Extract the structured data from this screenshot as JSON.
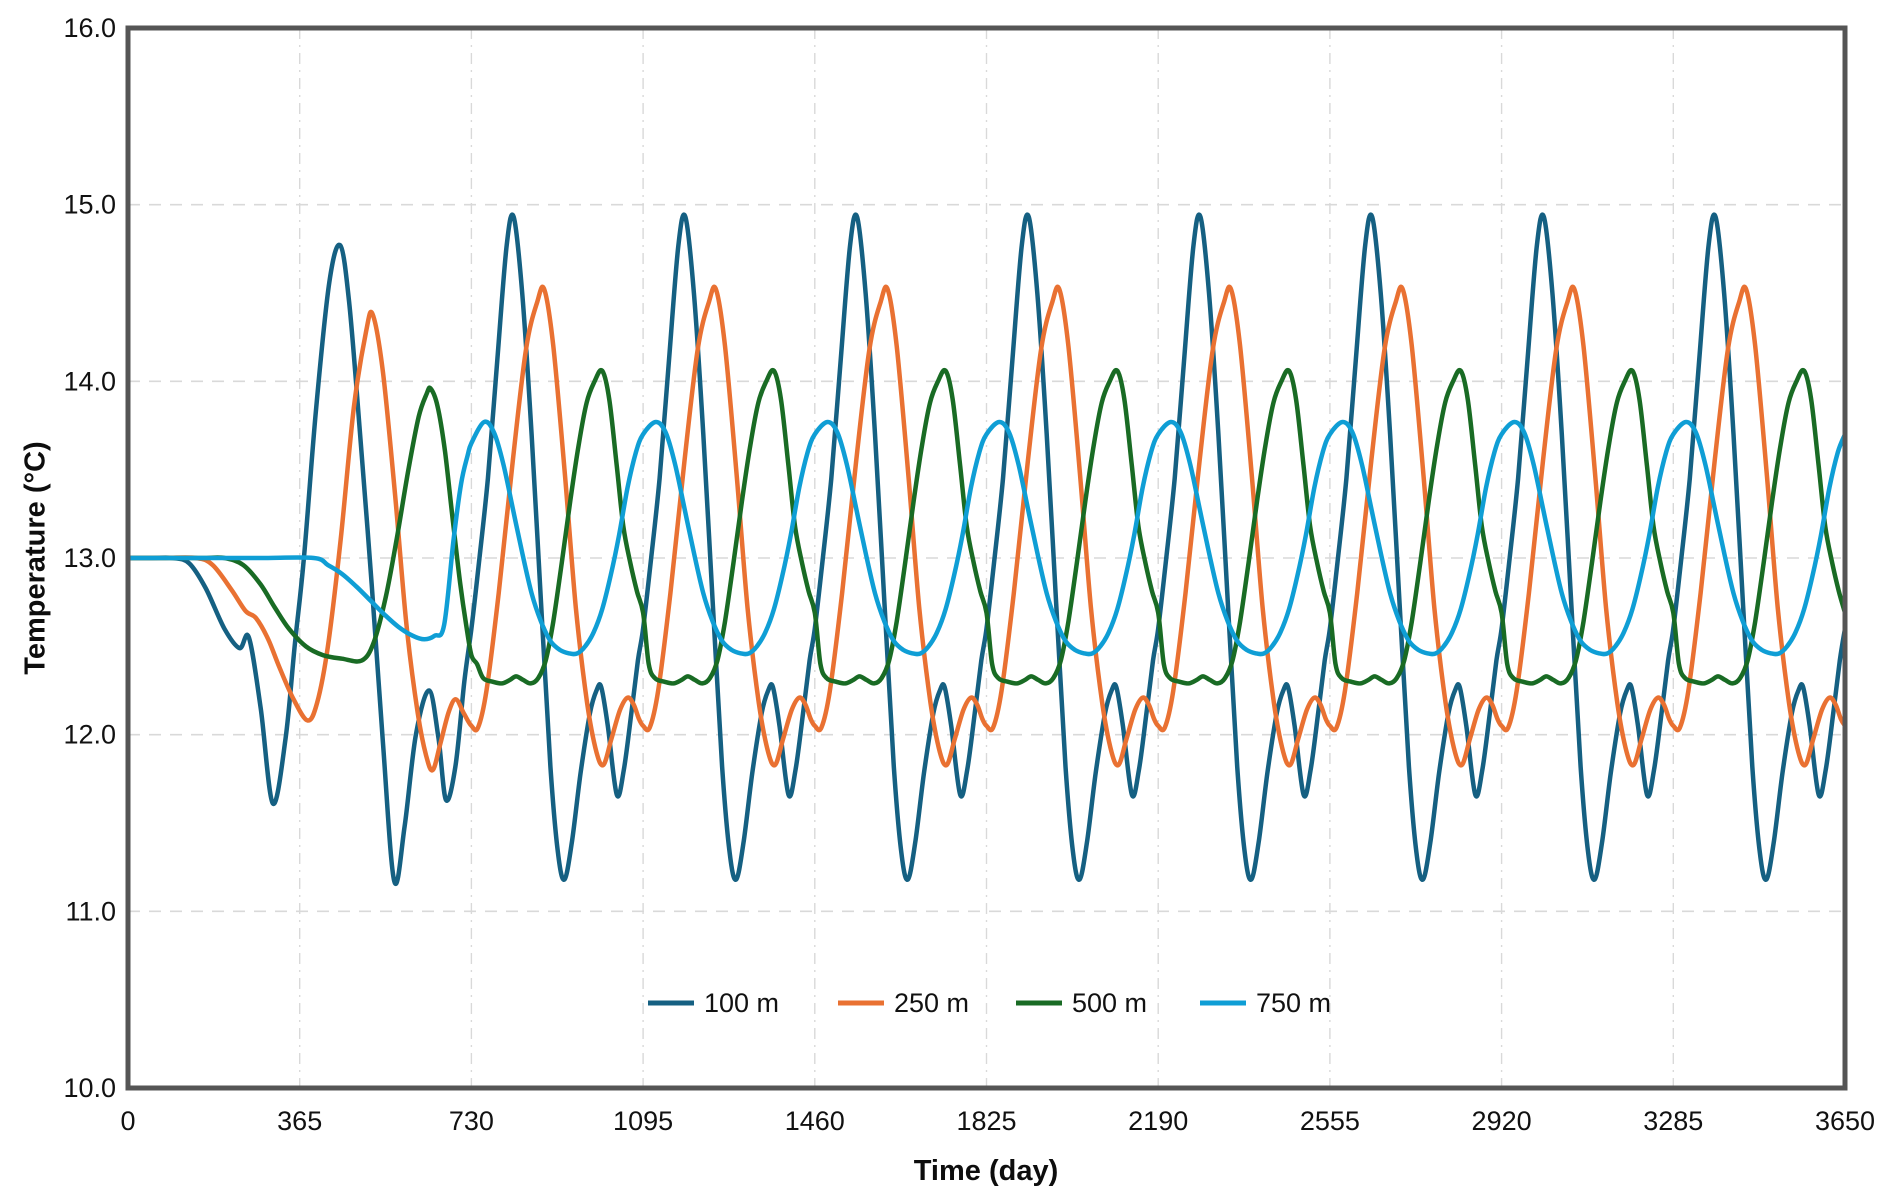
{
  "axes": {
    "x_title": "Time (day)",
    "y_title": "Temperature (°C)",
    "x_ticks": [
      {
        "v": 0,
        "label": "0"
      },
      {
        "v": 365,
        "label": "365"
      },
      {
        "v": 730,
        "label": "730"
      },
      {
        "v": 1095,
        "label": "1095"
      },
      {
        "v": 1460,
        "label": "1460"
      },
      {
        "v": 1825,
        "label": "1825"
      },
      {
        "v": 2190,
        "label": "2190"
      },
      {
        "v": 2555,
        "label": "2555"
      },
      {
        "v": 2920,
        "label": "2920"
      },
      {
        "v": 3285,
        "label": "3285"
      },
      {
        "v": 3650,
        "label": "3650"
      }
    ],
    "y_ticks": [
      {
        "v": 10,
        "label": "10.0"
      },
      {
        "v": 11,
        "label": "11.0"
      },
      {
        "v": 12,
        "label": "12.0"
      },
      {
        "v": 13,
        "label": "13.0"
      },
      {
        "v": 14,
        "label": "14.0"
      },
      {
        "v": 15,
        "label": "15.0"
      },
      {
        "v": 16,
        "label": "16.0"
      }
    ]
  },
  "style": {
    "frame_color": "#555555",
    "grid_color": "#d9d9d9",
    "background": "#ffffff"
  },
  "chart_data": {
    "type": "line",
    "title": "",
    "xlabel": "Time (day)",
    "ylabel": "Temperature (°C)",
    "xlim": [
      0,
      3650
    ],
    "ylim": [
      10.0,
      16.0
    ],
    "x_tick_step": 365,
    "y_tick_step": 1.0,
    "grid": true,
    "legend_position": "inside-bottom-center",
    "description": "Temperature at four sensor distances vs time over 10 years. All series start at 13.0 C, show an initial transient dip, then settle into annual (365-day) oscillations whose amplitude and phase lag depend on distance. Series data below: 'initial' = explicit [day, tempC] points for the first two years; 'cycle' = one steady annual cycle as [day-of-year, tempC] points repeated every 365 days starting at 'cycle_start' until day 3650.",
    "series": [
      {
        "name": "100 m",
        "color": "#156082",
        "steady_peak": 14.93,
        "steady_trough": 11.18,
        "cycle_start": 730,
        "initial": [
          [
            0,
            13.0
          ],
          [
            50,
            13.0
          ],
          [
            95,
            13.0
          ],
          [
            130,
            12.97
          ],
          [
            165,
            12.83
          ],
          [
            205,
            12.6
          ],
          [
            237,
            12.49
          ],
          [
            257,
            12.55
          ],
          [
            282,
            12.15
          ],
          [
            308,
            11.61
          ],
          [
            335,
            11.98
          ],
          [
            355,
            12.52
          ],
          [
            374,
            13.0
          ],
          [
            400,
            13.85
          ],
          [
            428,
            14.56
          ],
          [
            451,
            14.77
          ],
          [
            470,
            14.45
          ],
          [
            492,
            13.75
          ],
          [
            518,
            12.85
          ],
          [
            542,
            11.95
          ],
          [
            566,
            11.17
          ],
          [
            588,
            11.48
          ],
          [
            612,
            12.0
          ],
          [
            640,
            12.25
          ],
          [
            660,
            11.98
          ],
          [
            676,
            11.63
          ],
          [
            696,
            11.82
          ],
          [
            715,
            12.3
          ],
          [
            730,
            12.6
          ]
        ],
        "cycle": [
          [
            15,
            12.95
          ],
          [
            35,
            13.45
          ],
          [
            55,
            14.12
          ],
          [
            75,
            14.77
          ],
          [
            90,
            14.93
          ],
          [
            108,
            14.5
          ],
          [
            128,
            13.7
          ],
          [
            148,
            12.75
          ],
          [
            168,
            11.82
          ],
          [
            184,
            11.33
          ],
          [
            198,
            11.18
          ],
          [
            214,
            11.4
          ],
          [
            232,
            11.78
          ],
          [
            252,
            12.12
          ],
          [
            266,
            12.25
          ],
          [
            276,
            12.27
          ],
          [
            290,
            12.05
          ],
          [
            309,
            11.66
          ],
          [
            324,
            11.8
          ],
          [
            340,
            12.12
          ],
          [
            354,
            12.42
          ],
          [
            365,
            12.6
          ]
        ]
      },
      {
        "name": "250 m",
        "color": "#E97132",
        "steady_peak": 14.52,
        "steady_trough": 11.83,
        "cycle_start": 730,
        "initial": [
          [
            0,
            13.0
          ],
          [
            70,
            13.0
          ],
          [
            145,
            13.0
          ],
          [
            180,
            12.96
          ],
          [
            220,
            12.82
          ],
          [
            250,
            12.7
          ],
          [
            272,
            12.66
          ],
          [
            298,
            12.54
          ],
          [
            322,
            12.38
          ],
          [
            352,
            12.2
          ],
          [
            382,
            12.08
          ],
          [
            402,
            12.18
          ],
          [
            425,
            12.5
          ],
          [
            452,
            13.1
          ],
          [
            480,
            13.85
          ],
          [
            506,
            14.28
          ],
          [
            520,
            14.38
          ],
          [
            542,
            14.05
          ],
          [
            568,
            13.35
          ],
          [
            592,
            12.62
          ],
          [
            616,
            12.12
          ],
          [
            634,
            11.88
          ],
          [
            648,
            11.8
          ],
          [
            664,
            11.95
          ],
          [
            682,
            12.13
          ],
          [
            697,
            12.2
          ],
          [
            714,
            12.12
          ],
          [
            730,
            12.05
          ]
        ],
        "cycle": [
          [
            14,
            12.04
          ],
          [
            32,
            12.25
          ],
          [
            58,
            12.8
          ],
          [
            88,
            13.55
          ],
          [
            116,
            14.18
          ],
          [
            140,
            14.45
          ],
          [
            155,
            14.52
          ],
          [
            174,
            14.2
          ],
          [
            198,
            13.5
          ],
          [
            222,
            12.72
          ],
          [
            246,
            12.18
          ],
          [
            266,
            11.9
          ],
          [
            281,
            11.83
          ],
          [
            298,
            11.98
          ],
          [
            316,
            12.14
          ],
          [
            332,
            12.21
          ],
          [
            345,
            12.17
          ],
          [
            356,
            12.09
          ],
          [
            365,
            12.05
          ]
        ]
      },
      {
        "name": "500 m",
        "color": "#196B24",
        "steady_peak": 14.06,
        "steady_trough": 12.29,
        "cycle_start": 730,
        "initial": [
          [
            0,
            13.0
          ],
          [
            100,
            13.0
          ],
          [
            160,
            13.0
          ],
          [
            205,
            13.0
          ],
          [
            245,
            12.96
          ],
          [
            282,
            12.85
          ],
          [
            312,
            12.72
          ],
          [
            342,
            12.6
          ],
          [
            378,
            12.5
          ],
          [
            415,
            12.45
          ],
          [
            455,
            12.43
          ],
          [
            497,
            12.42
          ],
          [
            522,
            12.52
          ],
          [
            548,
            12.78
          ],
          [
            572,
            13.12
          ],
          [
            596,
            13.5
          ],
          [
            618,
            13.8
          ],
          [
            635,
            13.93
          ],
          [
            643,
            13.96
          ],
          [
            658,
            13.86
          ],
          [
            674,
            13.6
          ],
          [
            691,
            13.2
          ],
          [
            706,
            12.86
          ],
          [
            719,
            12.62
          ],
          [
            730,
            12.45
          ]
        ],
        "cycle": [
          [
            12,
            12.4
          ],
          [
            25,
            12.32
          ],
          [
            45,
            12.3
          ],
          [
            65,
            12.29
          ],
          [
            82,
            12.31
          ],
          [
            95,
            12.33
          ],
          [
            110,
            12.31
          ],
          [
            126,
            12.29
          ],
          [
            142,
            12.32
          ],
          [
            158,
            12.42
          ],
          [
            174,
            12.64
          ],
          [
            192,
            12.97
          ],
          [
            210,
            13.32
          ],
          [
            228,
            13.64
          ],
          [
            245,
            13.88
          ],
          [
            262,
            14.0
          ],
          [
            278,
            14.06
          ],
          [
            293,
            13.9
          ],
          [
            309,
            13.52
          ],
          [
            323,
            13.18
          ],
          [
            338,
            12.97
          ],
          [
            352,
            12.81
          ],
          [
            365,
            12.69
          ]
        ]
      },
      {
        "name": "750 m",
        "color": "#0F9ED5",
        "steady_peak": 13.78,
        "steady_trough": 12.46,
        "cycle_start": 730,
        "initial": [
          [
            0,
            13.0
          ],
          [
            150,
            13.0
          ],
          [
            280,
            13.0
          ],
          [
            395,
            13.0
          ],
          [
            425,
            12.96
          ],
          [
            455,
            12.91
          ],
          [
            485,
            12.84
          ],
          [
            515,
            12.76
          ],
          [
            545,
            12.68
          ],
          [
            575,
            12.61
          ],
          [
            605,
            12.56
          ],
          [
            630,
            12.54
          ],
          [
            652,
            12.56
          ],
          [
            672,
            12.62
          ],
          [
            692,
            13.1
          ],
          [
            708,
            13.42
          ],
          [
            722,
            13.58
          ],
          [
            730,
            13.65
          ]
        ],
        "cycle": [
          [
            27,
            13.77
          ],
          [
            48,
            13.71
          ],
          [
            68,
            13.53
          ],
          [
            88,
            13.28
          ],
          [
            108,
            13.03
          ],
          [
            128,
            12.8
          ],
          [
            148,
            12.64
          ],
          [
            168,
            12.53
          ],
          [
            188,
            12.48
          ],
          [
            208,
            12.46
          ],
          [
            225,
            12.46
          ],
          [
            242,
            12.5
          ],
          [
            260,
            12.58
          ],
          [
            278,
            12.71
          ],
          [
            296,
            12.9
          ],
          [
            314,
            13.13
          ],
          [
            332,
            13.4
          ],
          [
            350,
            13.6
          ],
          [
            365,
            13.7
          ]
        ]
      }
    ]
  },
  "legend": {
    "items": [
      {
        "label": "100 m"
      },
      {
        "label": "250 m"
      },
      {
        "label": "500 m"
      },
      {
        "label": "750 m"
      }
    ]
  }
}
